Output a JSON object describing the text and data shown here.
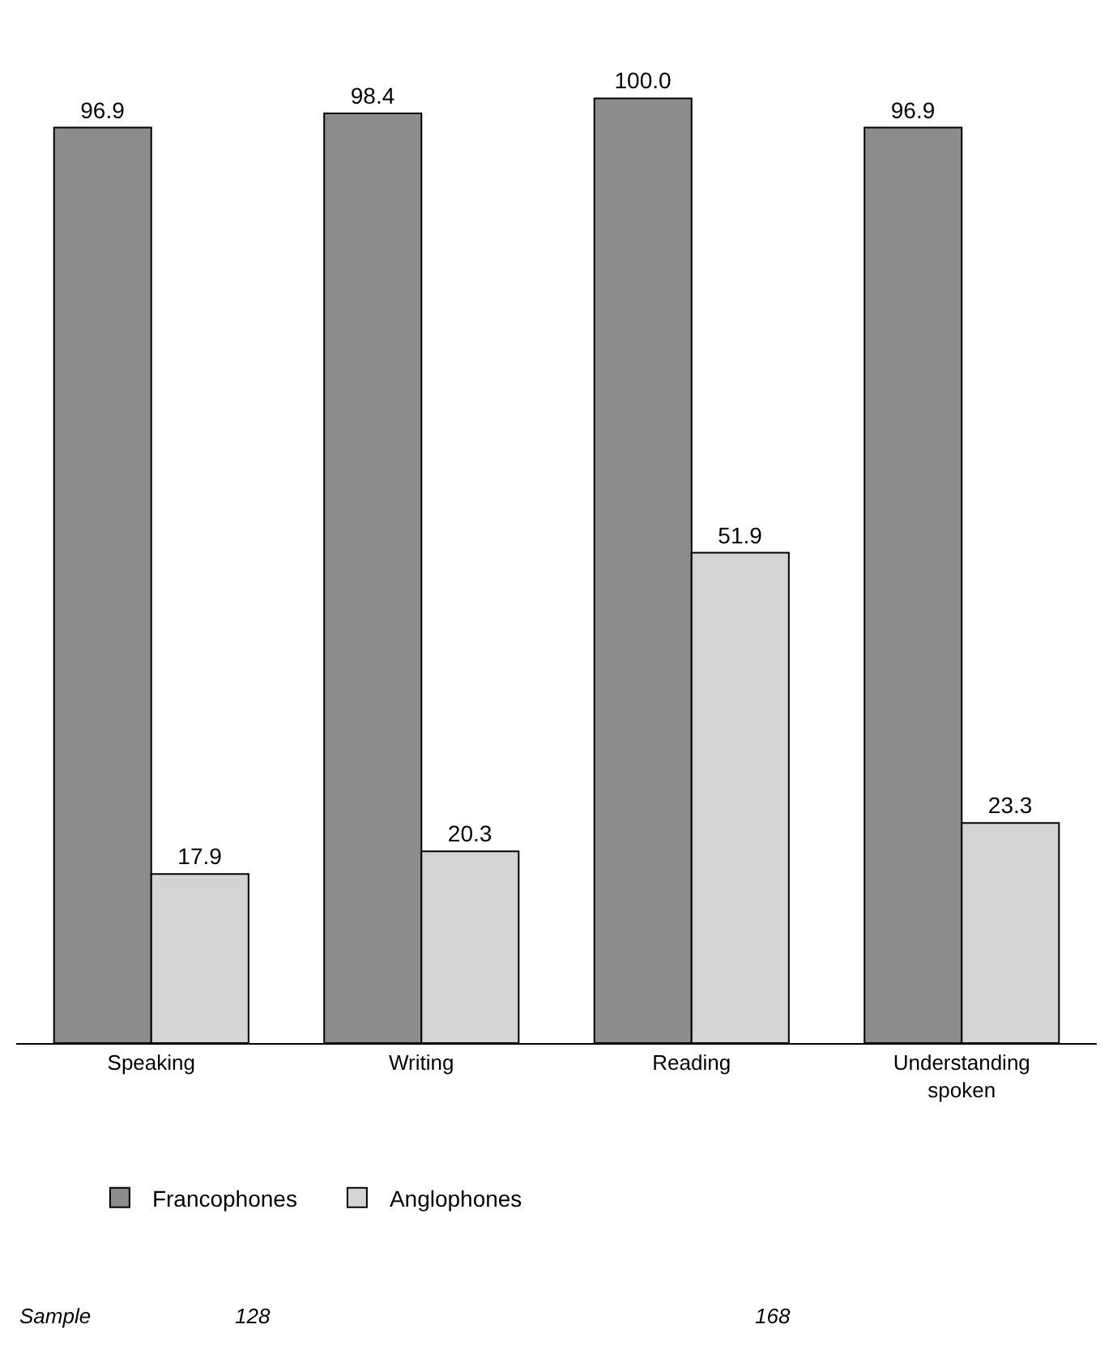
{
  "chart_data": {
    "type": "bar",
    "categories": [
      "Speaking",
      "Writing",
      "Reading",
      "Understanding\nspoken"
    ],
    "series": [
      {
        "name": "Francophones",
        "color": "#8c8c8c",
        "values": [
          96.9,
          98.4,
          100.0,
          96.9
        ],
        "value_labels": [
          "96.9",
          "98.4",
          "100.0",
          "96.9"
        ]
      },
      {
        "name": "Anglophones",
        "color": "#d4d4d4",
        "values": [
          17.9,
          20.3,
          51.9,
          23.3
        ],
        "value_labels": [
          "17.9",
          "20.3",
          "51.9",
          "23.3"
        ]
      }
    ],
    "legend": "bottom",
    "annotations": [
      "Sample",
      "128",
      "168"
    ]
  }
}
